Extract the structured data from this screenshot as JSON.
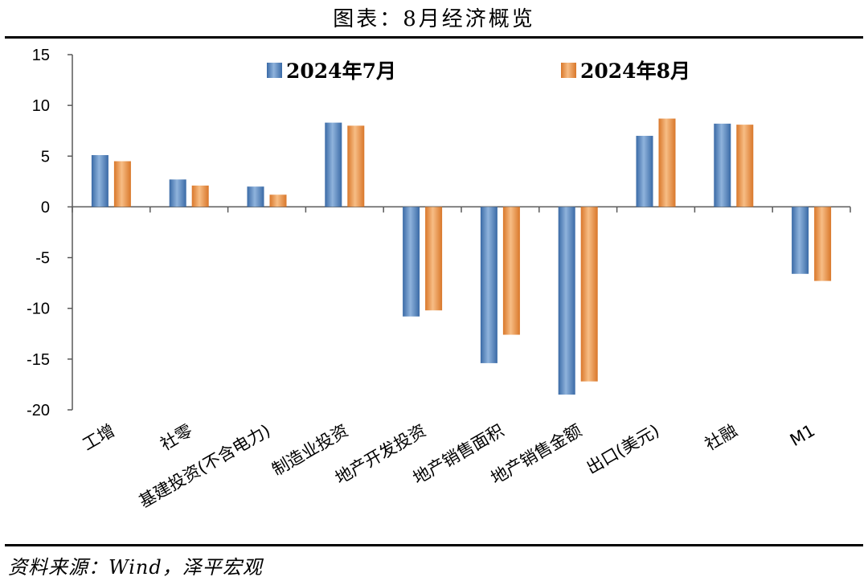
{
  "title": "图表：8月经济概览",
  "source": "资料来源：Wind，泽平宏观",
  "colors": {
    "july": "#4f81bd",
    "august": "#ed8f3c",
    "axis": "#595959"
  },
  "chart_data": {
    "type": "bar",
    "title": "图表：8月经济概览",
    "categories": [
      "工增",
      "社零",
      "基建投资(不含电力)",
      "制造业投资",
      "地产开发投资",
      "地产销售面积",
      "地产销售金额",
      "出口(美元)",
      "社融",
      "M1"
    ],
    "series": [
      {
        "name": "2024年7月",
        "values": [
          5.1,
          2.7,
          2.0,
          8.3,
          -10.8,
          -15.4,
          -18.5,
          7.0,
          8.2,
          -6.6
        ]
      },
      {
        "name": "2024年8月",
        "values": [
          4.5,
          2.1,
          1.2,
          8.0,
          -10.2,
          -12.6,
          -17.2,
          8.7,
          8.1,
          -7.3
        ]
      }
    ],
    "ylim": [
      -20,
      15
    ],
    "yticks": [
      15,
      10,
      5,
      0,
      -5,
      -10,
      -15,
      -20
    ],
    "legend_position": "top",
    "grid": false,
    "xlabel": "",
    "ylabel": ""
  }
}
